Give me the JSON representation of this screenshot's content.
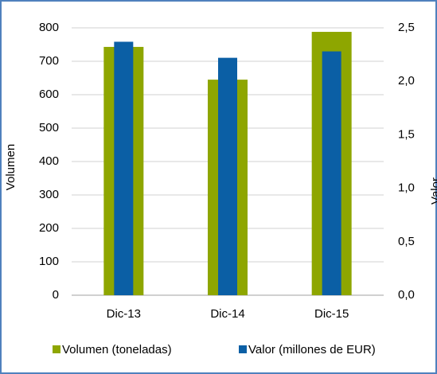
{
  "chart_data": {
    "type": "bar",
    "categories": [
      "Dic-13",
      "Dic-14",
      "Dic-15"
    ],
    "series": [
      {
        "name": "Volumen (toneladas)",
        "color": "#8ea600",
        "values": [
          743,
          645,
          788
        ]
      },
      {
        "name": "Valor (millones de EUR)",
        "color": "#0b5fa5",
        "values": [
          2.37,
          2.22,
          2.28
        ],
        "axis": "y2"
      }
    ],
    "ylabel": "Volumen",
    "y2label": "Valor",
    "ylim": [
      0,
      800
    ],
    "yticks": [
      0,
      100,
      200,
      300,
      400,
      500,
      600,
      700,
      800
    ],
    "y2lim": [
      0,
      2.5
    ],
    "y2ticks": [
      {
        "value": 0,
        "label": "0,0"
      },
      {
        "value": 0.5,
        "label": "0,5"
      },
      {
        "value": 1,
        "label": "1,0"
      },
      {
        "value": 1.5,
        "label": "1,5"
      },
      {
        "value": 2,
        "label": "2,0"
      },
      {
        "value": 2.5,
        "label": "2,5"
      }
    ],
    "grid": true,
    "legend": "bottom"
  }
}
